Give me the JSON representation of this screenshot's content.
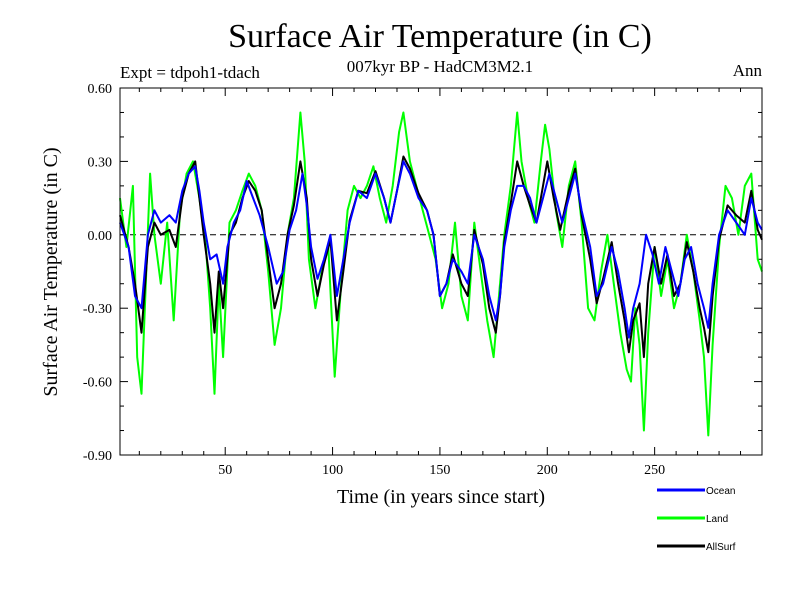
{
  "chart_data": {
    "type": "line",
    "title": "Surface Air Temperature (in C)",
    "subtitle": "007kyr BP - HadCM3M2.1",
    "left_label": "Expt = tdpoh1-tdach",
    "right_label": "Ann",
    "xlabel": "Time (in years since start)",
    "ylabel": "Surface Air Temperature (in C)",
    "xlim": [
      1,
      300
    ],
    "ylim": [
      -0.9,
      0.6
    ],
    "xticks": [
      50,
      100,
      150,
      200,
      250
    ],
    "xtick_labels": [
      "50",
      "100",
      "150",
      "200",
      "250"
    ],
    "yticks": [
      -0.9,
      -0.6,
      -0.3,
      0.0,
      0.3,
      0.6
    ],
    "ytick_labels": [
      "-0.90",
      "-0.60",
      "-0.30",
      "0.00",
      "0.30",
      "0.60"
    ],
    "zero_line": "dashed",
    "legend_position": "bottom-right",
    "series": [
      {
        "name": "Ocean",
        "color": "#0000ff",
        "points": [
          [
            1,
            0.05
          ],
          [
            5,
            -0.05
          ],
          [
            8,
            -0.25
          ],
          [
            11,
            -0.3
          ],
          [
            14,
            0.0
          ],
          [
            17,
            0.1
          ],
          [
            20,
            0.05
          ],
          [
            24,
            0.08
          ],
          [
            27,
            0.05
          ],
          [
            30,
            0.18
          ],
          [
            33,
            0.25
          ],
          [
            36,
            0.28
          ],
          [
            38,
            0.18
          ],
          [
            40,
            0.05
          ],
          [
            43,
            -0.1
          ],
          [
            46,
            -0.08
          ],
          [
            49,
            -0.2
          ],
          [
            51,
            -0.05
          ],
          [
            54,
            0.05
          ],
          [
            57,
            0.1
          ],
          [
            60,
            0.22
          ],
          [
            63,
            0.15
          ],
          [
            66,
            0.08
          ],
          [
            70,
            -0.05
          ],
          [
            74,
            -0.2
          ],
          [
            77,
            -0.15
          ],
          [
            80,
            0.02
          ],
          [
            83,
            0.1
          ],
          [
            86,
            0.25
          ],
          [
            88,
            0.12
          ],
          [
            90,
            -0.05
          ],
          [
            93,
            -0.18
          ],
          [
            96,
            -0.1
          ],
          [
            99,
            0.0
          ],
          [
            102,
            -0.25
          ],
          [
            105,
            -0.1
          ],
          [
            108,
            0.05
          ],
          [
            112,
            0.18
          ],
          [
            116,
            0.15
          ],
          [
            120,
            0.25
          ],
          [
            124,
            0.15
          ],
          [
            127,
            0.05
          ],
          [
            130,
            0.18
          ],
          [
            133,
            0.3
          ],
          [
            136,
            0.25
          ],
          [
            140,
            0.15
          ],
          [
            144,
            0.1
          ],
          [
            147,
            0.0
          ],
          [
            150,
            -0.25
          ],
          [
            153,
            -0.2
          ],
          [
            156,
            -0.1
          ],
          [
            160,
            -0.15
          ],
          [
            163,
            -0.2
          ],
          [
            166,
            0.0
          ],
          [
            170,
            -0.1
          ],
          [
            173,
            -0.25
          ],
          [
            176,
            -0.35
          ],
          [
            178,
            -0.25
          ],
          [
            180,
            -0.05
          ],
          [
            183,
            0.1
          ],
          [
            186,
            0.2
          ],
          [
            189,
            0.2
          ],
          [
            192,
            0.15
          ],
          [
            195,
            0.05
          ],
          [
            198,
            0.15
          ],
          [
            201,
            0.25
          ],
          [
            204,
            0.15
          ],
          [
            207,
            0.05
          ],
          [
            210,
            0.15
          ],
          [
            213,
            0.25
          ],
          [
            216,
            0.1
          ],
          [
            220,
            -0.05
          ],
          [
            223,
            -0.25
          ],
          [
            226,
            -0.2
          ],
          [
            230,
            -0.05
          ],
          [
            233,
            -0.15
          ],
          [
            236,
            -0.3
          ],
          [
            238,
            -0.42
          ],
          [
            240,
            -0.3
          ],
          [
            243,
            -0.2
          ],
          [
            246,
            0.0
          ],
          [
            249,
            -0.08
          ],
          [
            252,
            -0.2
          ],
          [
            255,
            -0.05
          ],
          [
            258,
            -0.15
          ],
          [
            261,
            -0.25
          ],
          [
            264,
            -0.1
          ],
          [
            267,
            -0.05
          ],
          [
            270,
            -0.2
          ],
          [
            273,
            -0.3
          ],
          [
            275,
            -0.38
          ],
          [
            277,
            -0.2
          ],
          [
            280,
            0.0
          ],
          [
            284,
            0.1
          ],
          [
            288,
            0.05
          ],
          [
            292,
            0.0
          ],
          [
            295,
            0.15
          ],
          [
            298,
            0.05
          ],
          [
            300,
            0.02
          ]
        ]
      },
      {
        "name": "Land",
        "color": "#00ff00",
        "points": [
          [
            1,
            0.15
          ],
          [
            4,
            -0.05
          ],
          [
            7,
            0.2
          ],
          [
            9,
            -0.5
          ],
          [
            11,
            -0.65
          ],
          [
            13,
            -0.2
          ],
          [
            15,
            0.25
          ],
          [
            17,
            0.0
          ],
          [
            20,
            -0.2
          ],
          [
            23,
            0.05
          ],
          [
            26,
            -0.35
          ],
          [
            29,
            0.1
          ],
          [
            32,
            0.25
          ],
          [
            35,
            0.3
          ],
          [
            38,
            0.15
          ],
          [
            41,
            -0.05
          ],
          [
            43,
            -0.3
          ],
          [
            45,
            -0.65
          ],
          [
            47,
            -0.2
          ],
          [
            49,
            -0.5
          ],
          [
            52,
            0.05
          ],
          [
            55,
            0.1
          ],
          [
            58,
            0.18
          ],
          [
            61,
            0.25
          ],
          [
            64,
            0.2
          ],
          [
            67,
            0.1
          ],
          [
            70,
            -0.15
          ],
          [
            73,
            -0.45
          ],
          [
            76,
            -0.3
          ],
          [
            79,
            0.0
          ],
          [
            82,
            0.15
          ],
          [
            85,
            0.5
          ],
          [
            87,
            0.3
          ],
          [
            89,
            -0.1
          ],
          [
            92,
            -0.3
          ],
          [
            95,
            -0.15
          ],
          [
            98,
            -0.05
          ],
          [
            101,
            -0.58
          ],
          [
            104,
            -0.2
          ],
          [
            107,
            0.1
          ],
          [
            110,
            0.2
          ],
          [
            113,
            0.15
          ],
          [
            116,
            0.2
          ],
          [
            119,
            0.28
          ],
          [
            122,
            0.15
          ],
          [
            125,
            0.05
          ],
          [
            128,
            0.2
          ],
          [
            131,
            0.42
          ],
          [
            133,
            0.5
          ],
          [
            136,
            0.3
          ],
          [
            139,
            0.2
          ],
          [
            142,
            0.1
          ],
          [
            145,
            0.0
          ],
          [
            148,
            -0.1
          ],
          [
            151,
            -0.3
          ],
          [
            154,
            -0.2
          ],
          [
            157,
            0.05
          ],
          [
            160,
            -0.25
          ],
          [
            163,
            -0.35
          ],
          [
            166,
            0.05
          ],
          [
            169,
            -0.15
          ],
          [
            172,
            -0.35
          ],
          [
            175,
            -0.5
          ],
          [
            177,
            -0.3
          ],
          [
            180,
            0.0
          ],
          [
            183,
            0.2
          ],
          [
            186,
            0.5
          ],
          [
            188,
            0.3
          ],
          [
            191,
            0.15
          ],
          [
            194,
            0.05
          ],
          [
            197,
            0.3
          ],
          [
            199,
            0.45
          ],
          [
            201,
            0.35
          ],
          [
            204,
            0.1
          ],
          [
            207,
            -0.05
          ],
          [
            210,
            0.2
          ],
          [
            213,
            0.3
          ],
          [
            216,
            0.05
          ],
          [
            219,
            -0.3
          ],
          [
            222,
            -0.35
          ],
          [
            225,
            -0.15
          ],
          [
            228,
            0.0
          ],
          [
            231,
            -0.2
          ],
          [
            234,
            -0.4
          ],
          [
            237,
            -0.55
          ],
          [
            239,
            -0.6
          ],
          [
            241,
            -0.3
          ],
          [
            243,
            -0.45
          ],
          [
            245,
            -0.8
          ],
          [
            247,
            -0.4
          ],
          [
            250,
            -0.05
          ],
          [
            253,
            -0.25
          ],
          [
            256,
            -0.1
          ],
          [
            259,
            -0.3
          ],
          [
            262,
            -0.2
          ],
          [
            265,
            0.0
          ],
          [
            268,
            -0.15
          ],
          [
            271,
            -0.35
          ],
          [
            273,
            -0.5
          ],
          [
            275,
            -0.82
          ],
          [
            277,
            -0.45
          ],
          [
            280,
            -0.05
          ],
          [
            283,
            0.2
          ],
          [
            286,
            0.15
          ],
          [
            289,
            0.0
          ],
          [
            292,
            0.2
          ],
          [
            295,
            0.25
          ],
          [
            298,
            -0.1
          ],
          [
            300,
            -0.15
          ]
        ]
      },
      {
        "name": "AllSurf",
        "color": "#000000",
        "points": [
          [
            1,
            0.08
          ],
          [
            5,
            -0.05
          ],
          [
            8,
            -0.2
          ],
          [
            11,
            -0.4
          ],
          [
            14,
            -0.05
          ],
          [
            17,
            0.05
          ],
          [
            20,
            0.0
          ],
          [
            24,
            0.02
          ],
          [
            27,
            -0.05
          ],
          [
            30,
            0.15
          ],
          [
            33,
            0.25
          ],
          [
            36,
            0.3
          ],
          [
            38,
            0.15
          ],
          [
            40,
            0.0
          ],
          [
            43,
            -0.2
          ],
          [
            45,
            -0.4
          ],
          [
            47,
            -0.15
          ],
          [
            49,
            -0.3
          ],
          [
            52,
            0.0
          ],
          [
            55,
            0.05
          ],
          [
            58,
            0.15
          ],
          [
            61,
            0.22
          ],
          [
            64,
            0.18
          ],
          [
            67,
            0.1
          ],
          [
            70,
            -0.1
          ],
          [
            73,
            -0.3
          ],
          [
            76,
            -0.2
          ],
          [
            79,
            0.0
          ],
          [
            82,
            0.12
          ],
          [
            85,
            0.3
          ],
          [
            88,
            0.15
          ],
          [
            90,
            -0.1
          ],
          [
            93,
            -0.25
          ],
          [
            96,
            -0.12
          ],
          [
            99,
            -0.02
          ],
          [
            102,
            -0.35
          ],
          [
            105,
            -0.15
          ],
          [
            108,
            0.06
          ],
          [
            112,
            0.18
          ],
          [
            116,
            0.17
          ],
          [
            120,
            0.26
          ],
          [
            124,
            0.15
          ],
          [
            127,
            0.05
          ],
          [
            130,
            0.18
          ],
          [
            133,
            0.32
          ],
          [
            136,
            0.27
          ],
          [
            140,
            0.17
          ],
          [
            144,
            0.1
          ],
          [
            147,
            0.0
          ],
          [
            150,
            -0.25
          ],
          [
            153,
            -0.2
          ],
          [
            156,
            -0.08
          ],
          [
            160,
            -0.2
          ],
          [
            163,
            -0.25
          ],
          [
            166,
            0.02
          ],
          [
            170,
            -0.12
          ],
          [
            173,
            -0.3
          ],
          [
            176,
            -0.4
          ],
          [
            178,
            -0.25
          ],
          [
            180,
            -0.03
          ],
          [
            183,
            0.13
          ],
          [
            186,
            0.3
          ],
          [
            189,
            0.2
          ],
          [
            192,
            0.12
          ],
          [
            195,
            0.05
          ],
          [
            198,
            0.2
          ],
          [
            200,
            0.3
          ],
          [
            203,
            0.15
          ],
          [
            206,
            0.02
          ],
          [
            210,
            0.18
          ],
          [
            213,
            0.27
          ],
          [
            216,
            0.08
          ],
          [
            220,
            -0.1
          ],
          [
            223,
            -0.28
          ],
          [
            226,
            -0.18
          ],
          [
            230,
            -0.03
          ],
          [
            233,
            -0.2
          ],
          [
            236,
            -0.35
          ],
          [
            238,
            -0.48
          ],
          [
            240,
            -0.35
          ],
          [
            243,
            -0.28
          ],
          [
            245,
            -0.5
          ],
          [
            247,
            -0.2
          ],
          [
            250,
            -0.05
          ],
          [
            253,
            -0.2
          ],
          [
            256,
            -0.08
          ],
          [
            259,
            -0.25
          ],
          [
            262,
            -0.2
          ],
          [
            265,
            -0.03
          ],
          [
            268,
            -0.15
          ],
          [
            271,
            -0.3
          ],
          [
            273,
            -0.38
          ],
          [
            275,
            -0.48
          ],
          [
            277,
            -0.25
          ],
          [
            280,
            -0.02
          ],
          [
            284,
            0.12
          ],
          [
            288,
            0.08
          ],
          [
            292,
            0.05
          ],
          [
            295,
            0.18
          ],
          [
            298,
            0.02
          ],
          [
            300,
            -0.02
          ]
        ]
      }
    ]
  }
}
